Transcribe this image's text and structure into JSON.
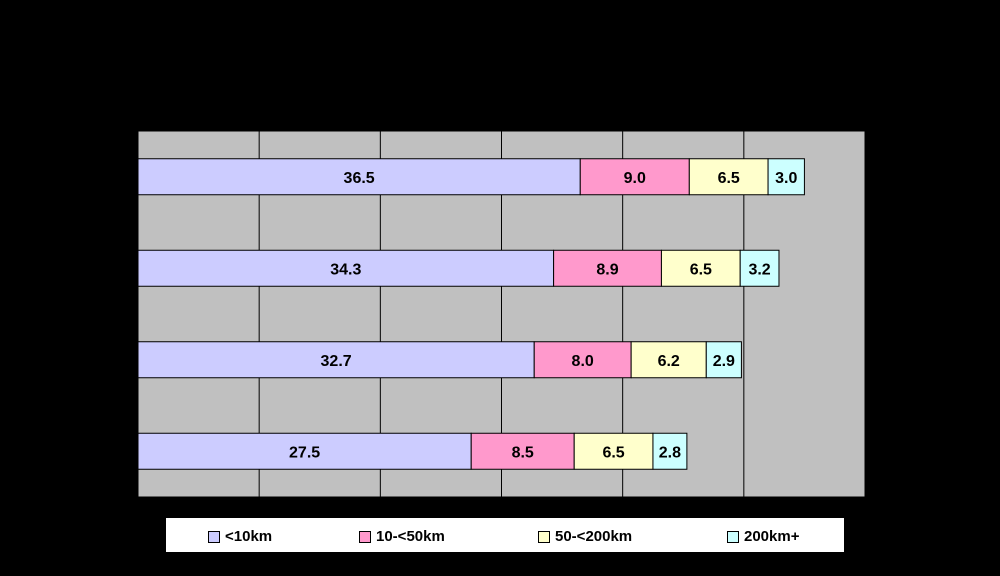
{
  "chart_data": {
    "type": "bar",
    "orientation": "horizontal",
    "stacked": true,
    "title": "",
    "xlabel": "",
    "ylabel": "",
    "xlim": [
      0,
      60
    ],
    "grid": true,
    "legend_position": "bottom",
    "categories": [
      "",
      "",
      "",
      ""
    ],
    "series": [
      {
        "name": "<10km",
        "color": "#ccccff",
        "values": [
          36.5,
          34.3,
          32.7,
          27.5
        ]
      },
      {
        "name": "10-<50km",
        "color": "#ff99cc",
        "values": [
          9.0,
          8.9,
          8.0,
          8.5
        ]
      },
      {
        "name": "50-<200km",
        "color": "#ffffcc",
        "values": [
          6.5,
          6.5,
          6.2,
          6.5
        ]
      },
      {
        "name": "200km+",
        "color": "#ccffff",
        "values": [
          3.0,
          3.2,
          2.9,
          2.8
        ]
      }
    ],
    "data_labels": [
      [
        "36.5",
        "9.0",
        "6.5",
        "3.0"
      ],
      [
        "34.3",
        "8.9",
        "6.5",
        "3.2"
      ],
      [
        "32.7",
        "8.0",
        "6.2",
        "2.9"
      ],
      [
        "27.5",
        "8.5",
        "6.5",
        "2.8"
      ]
    ],
    "plot_background": "#c0c0c0"
  }
}
